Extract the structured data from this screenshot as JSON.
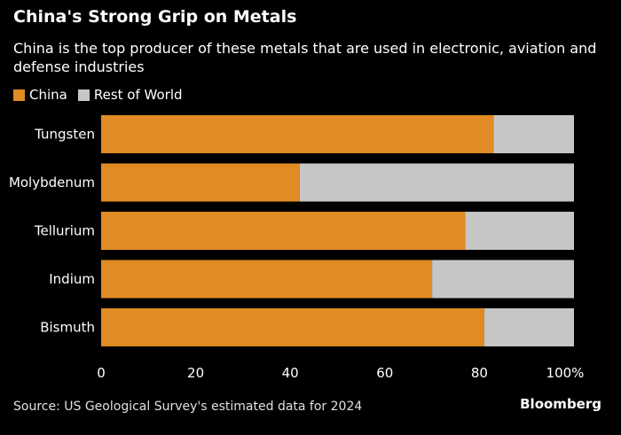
{
  "title": "China's Strong Grip on Metals",
  "subtitle": "China is the top producer of these metals that are used in electronic, aviation and defense industries",
  "source": "Source: US Geological Survey's estimated data for 2024",
  "brand": "Bloomberg",
  "colors": {
    "china": "#e08b24",
    "rest": "#c6c6c6",
    "background": "#000000",
    "text": "#ffffff"
  },
  "chart_data": {
    "type": "bar",
    "orientation": "horizontal",
    "stacked": true,
    "categories": [
      "Tungsten",
      "Molybdenum",
      "Tellurium",
      "Indium",
      "Bismuth"
    ],
    "series": [
      {
        "name": "China",
        "values": [
          83,
          42,
          77,
          70,
          81
        ],
        "color": "#e08b24"
      },
      {
        "name": "Rest of World",
        "values": [
          17,
          58,
          23,
          30,
          19
        ],
        "color": "#c6c6c6"
      }
    ],
    "xticks": [
      "0",
      "20",
      "40",
      "60",
      "80",
      "100%"
    ],
    "xtick_values": [
      0,
      20,
      40,
      60,
      80,
      100
    ],
    "xlim": [
      0,
      100
    ],
    "title": "China's Strong Grip on Metals",
    "xlabel": "",
    "ylabel": "",
    "legend_position": "top-left",
    "grid": false
  }
}
